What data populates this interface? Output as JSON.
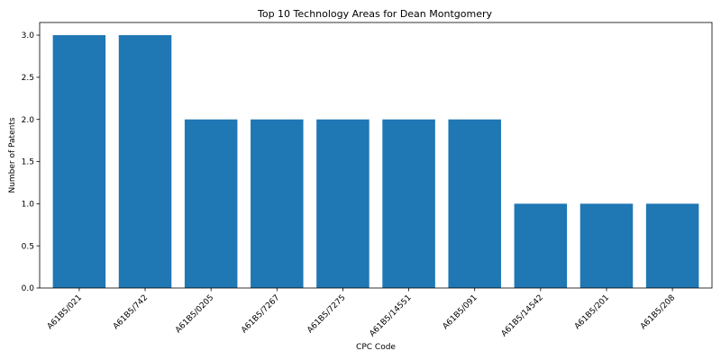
{
  "chart_data": {
    "type": "bar",
    "title": "Top 10 Technology Areas for Dean Montgomery",
    "xlabel": "CPC Code",
    "ylabel": "Number of Patents",
    "categories": [
      "A61B5/021",
      "A61B5/742",
      "A61B5/0205",
      "A61B5/7267",
      "A61B5/7275",
      "A61B5/14551",
      "A61B5/091",
      "A61B5/14542",
      "A61B5/201",
      "A61B5/208"
    ],
    "values": [
      3,
      3,
      2,
      2,
      2,
      2,
      2,
      1,
      1,
      1
    ],
    "ylim": [
      0,
      3.15
    ],
    "yticks": [
      0.0,
      0.5,
      1.0,
      1.5,
      2.0,
      2.5,
      3.0
    ],
    "ytick_labels": [
      "0.0",
      "0.5",
      "1.0",
      "1.5",
      "2.0",
      "2.5",
      "3.0"
    ],
    "bar_color": "#1f77b4",
    "grid": false
  }
}
